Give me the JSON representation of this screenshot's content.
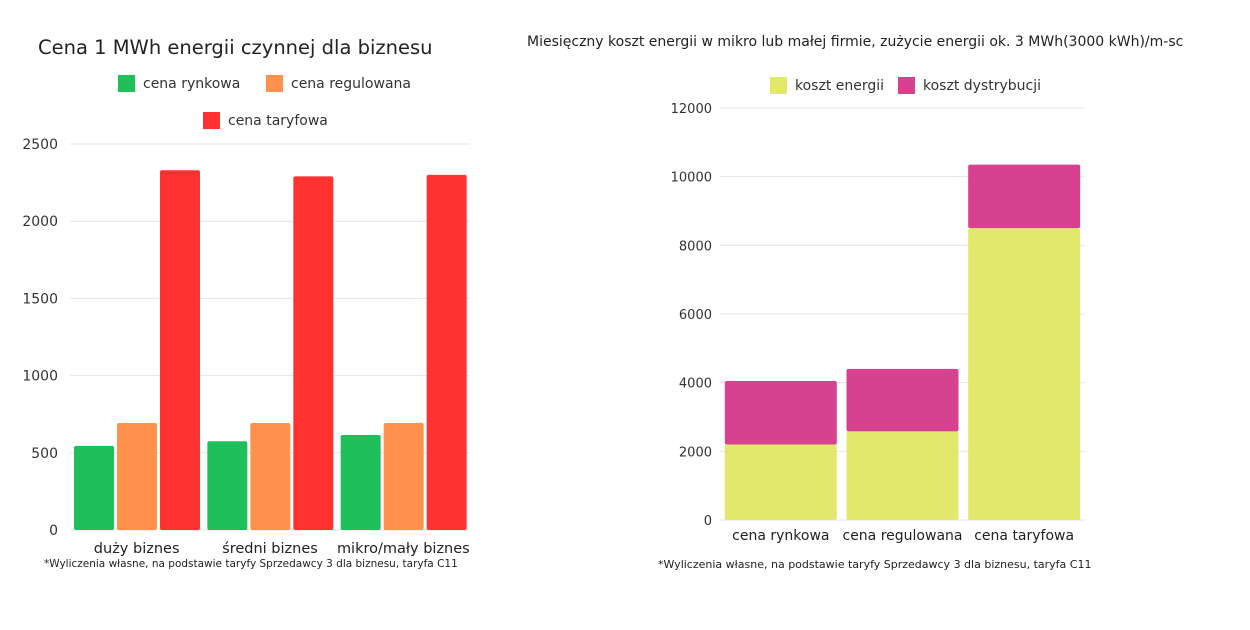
{
  "chart_data": [
    {
      "type": "bar",
      "title": "Cena 1 MWh energii czynnej dla biznesu",
      "categories": [
        "duży biznes",
        "średni biznes",
        "mikro/mały biznes"
      ],
      "series": [
        {
          "name": "cena rynkowa",
          "color": "#1fbf5b",
          "values": [
            545,
            575,
            615
          ]
        },
        {
          "name": "cena regulowana",
          "color": "#ff914d",
          "values": [
            693,
            693,
            693
          ]
        },
        {
          "name": "cena taryfowa",
          "color": "#ff3131",
          "values": [
            2330,
            2290,
            2300
          ]
        }
      ],
      "yticks": [
        0,
        500,
        1000,
        1500,
        2000,
        2500
      ],
      "ylim": [
        0,
        2500
      ],
      "grid": true,
      "legend_position": "top",
      "footnote": "*Wyliczenia własne, na podstawie taryfy Sprzedawcy 3 dla biznesu, taryfa C11"
    },
    {
      "type": "bar",
      "stacked": true,
      "title": "Miesięczny koszt energii w mikro lub małej firmie, zużycie energii ok. 3 MWh(3000 kWh)/m-sc",
      "categories": [
        "cena rynkowa",
        "cena regulowana",
        "cena taryfowa"
      ],
      "series": [
        {
          "name": "koszt energii",
          "color": "#e2e86b",
          "values": [
            2200,
            2580,
            8500
          ]
        },
        {
          "name": "koszt dystrybucji",
          "color": "#d6428f",
          "values": [
            1850,
            1820,
            1850
          ]
        }
      ],
      "yticks": [
        0,
        2000,
        4000,
        6000,
        8000,
        10000,
        12000
      ],
      "ylim": [
        0,
        12000
      ],
      "grid": true,
      "legend_position": "top",
      "footnote": "*Wyliczenia własne, na podstawie taryfy Sprzedawcy 3 dla biznesu, taryfa C11"
    }
  ]
}
